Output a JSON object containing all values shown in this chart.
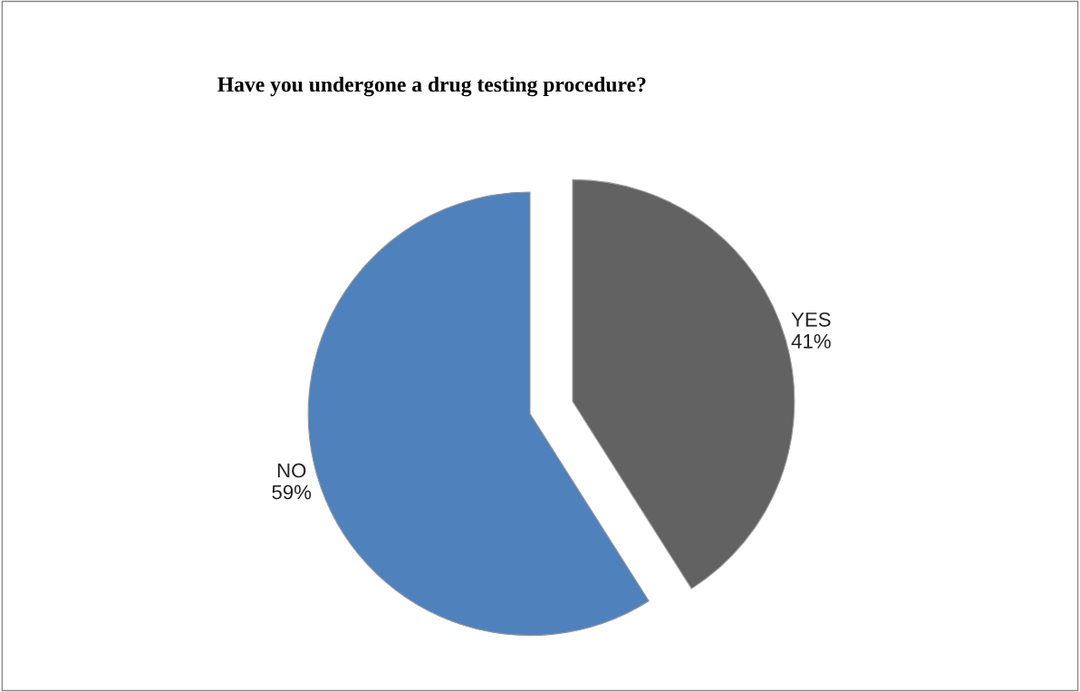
{
  "chart_data": {
    "type": "pie",
    "title": "Have you undergone a drug testing procedure?",
    "categories": [
      "YES",
      "NO"
    ],
    "values": [
      41,
      59
    ],
    "value_labels": [
      "41%",
      "59%"
    ],
    "colors": [
      "#626262",
      "#4f81bd"
    ]
  }
}
